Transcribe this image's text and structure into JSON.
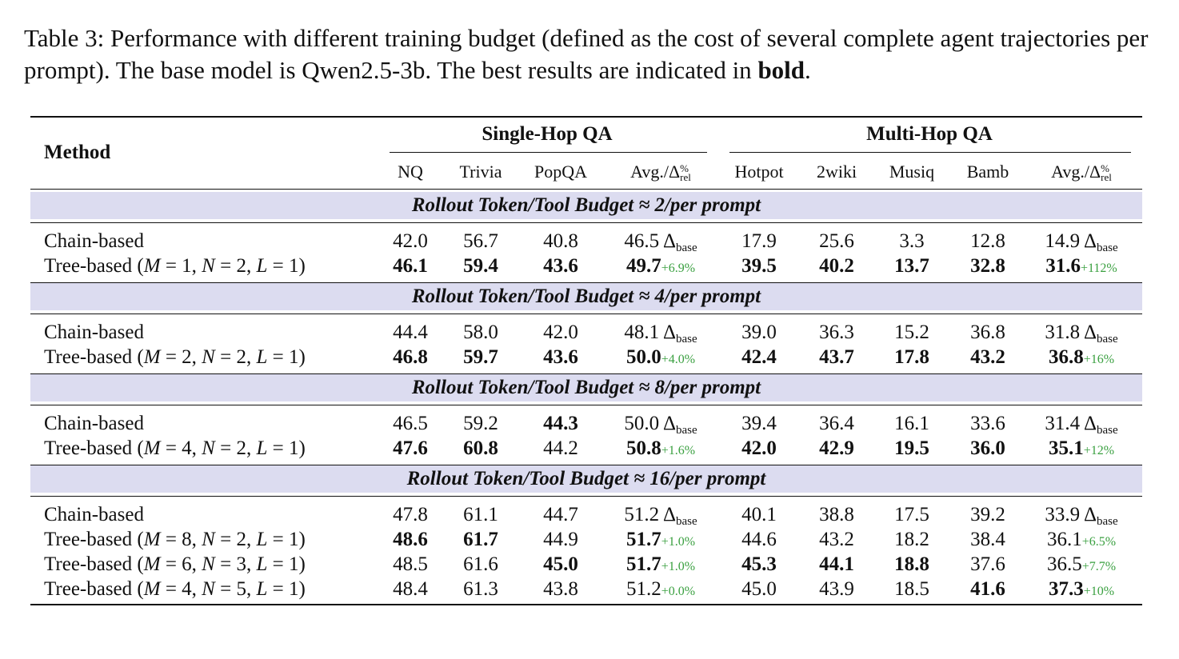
{
  "caption": {
    "prefix": "Table 3: Performance with different training budget (defined as the cost of several complete agent trajectories per prompt). The base model is Qwen2.5-3b. The best results are indicated in",
    "bold_word": "bold",
    "suffix": "."
  },
  "header": {
    "method": "Method",
    "group_single": "Single-Hop QA",
    "group_multi": "Multi-Hop QA",
    "columns": [
      "NQ",
      "Trivia",
      "PopQA",
      "Avg./Δ",
      "Hotpot",
      "2wiki",
      "Musiq",
      "Bamb",
      "Avg./Δ"
    ],
    "delta_sup": "%",
    "delta_sub": "rel"
  },
  "delta_base_label": "Δ",
  "delta_base_sub": "base",
  "sections": [
    {
      "title": "Rollout Token/Tool Budget ≈ 2/per prompt",
      "rows": [
        {
          "method": "Chain-based",
          "cells": [
            {
              "v": "42.0"
            },
            {
              "v": "56.7"
            },
            {
              "v": "40.8"
            },
            {
              "v": "46.5",
              "base": true
            },
            {
              "v": "17.9"
            },
            {
              "v": "25.6"
            },
            {
              "v": "3.3"
            },
            {
              "v": "12.8"
            },
            {
              "v": "14.9",
              "base": true
            }
          ]
        },
        {
          "method": "Tree-based",
          "params": {
            "M": "1",
            "N": "2",
            "L": "1"
          },
          "cells": [
            {
              "v": "46.1",
              "b": true
            },
            {
              "v": "59.4",
              "b": true
            },
            {
              "v": "43.6",
              "b": true
            },
            {
              "v": "49.7",
              "b": true,
              "d": "+6.9%"
            },
            {
              "v": "39.5",
              "b": true
            },
            {
              "v": "40.2",
              "b": true
            },
            {
              "v": "13.7",
              "b": true
            },
            {
              "v": "32.8",
              "b": true
            },
            {
              "v": "31.6",
              "b": true,
              "d": "+112%"
            }
          ]
        }
      ]
    },
    {
      "title": "Rollout Token/Tool Budget ≈ 4/per prompt",
      "rows": [
        {
          "method": "Chain-based",
          "cells": [
            {
              "v": "44.4"
            },
            {
              "v": "58.0"
            },
            {
              "v": "42.0"
            },
            {
              "v": "48.1",
              "base": true
            },
            {
              "v": "39.0"
            },
            {
              "v": "36.3"
            },
            {
              "v": "15.2"
            },
            {
              "v": "36.8"
            },
            {
              "v": "31.8",
              "base": true
            }
          ]
        },
        {
          "method": "Tree-based",
          "params": {
            "M": "2",
            "N": "2",
            "L": "1"
          },
          "cells": [
            {
              "v": "46.8",
              "b": true
            },
            {
              "v": "59.7",
              "b": true
            },
            {
              "v": "43.6",
              "b": true
            },
            {
              "v": "50.0",
              "b": true,
              "d": "+4.0%"
            },
            {
              "v": "42.4",
              "b": true
            },
            {
              "v": "43.7",
              "b": true
            },
            {
              "v": "17.8",
              "b": true
            },
            {
              "v": "43.2",
              "b": true
            },
            {
              "v": "36.8",
              "b": true,
              "d": "+16%"
            }
          ]
        }
      ]
    },
    {
      "title": "Rollout Token/Tool Budget ≈ 8/per prompt",
      "rows": [
        {
          "method": "Chain-based",
          "cells": [
            {
              "v": "46.5"
            },
            {
              "v": "59.2"
            },
            {
              "v": "44.3",
              "b": true
            },
            {
              "v": "50.0",
              "base": true
            },
            {
              "v": "39.4"
            },
            {
              "v": "36.4"
            },
            {
              "v": "16.1"
            },
            {
              "v": "33.6"
            },
            {
              "v": "31.4",
              "base": true
            }
          ]
        },
        {
          "method": "Tree-based",
          "params": {
            "M": "4",
            "N": "2",
            "L": "1"
          },
          "cells": [
            {
              "v": "47.6",
              "b": true
            },
            {
              "v": "60.8",
              "b": true
            },
            {
              "v": "44.2"
            },
            {
              "v": "50.8",
              "b": true,
              "d": "+1.6%"
            },
            {
              "v": "42.0",
              "b": true
            },
            {
              "v": "42.9",
              "b": true
            },
            {
              "v": "19.5",
              "b": true
            },
            {
              "v": "36.0",
              "b": true
            },
            {
              "v": "35.1",
              "b": true,
              "d": "+12%"
            }
          ]
        }
      ]
    },
    {
      "title": "Rollout Token/Tool Budget ≈ 16/per prompt",
      "rows": [
        {
          "method": "Chain-based",
          "cells": [
            {
              "v": "47.8"
            },
            {
              "v": "61.1"
            },
            {
              "v": "44.7"
            },
            {
              "v": "51.2",
              "base": true
            },
            {
              "v": "40.1"
            },
            {
              "v": "38.8"
            },
            {
              "v": "17.5"
            },
            {
              "v": "39.2"
            },
            {
              "v": "33.9",
              "base": true
            }
          ]
        },
        {
          "method": "Tree-based",
          "params": {
            "M": "8",
            "N": "2",
            "L": "1"
          },
          "cells": [
            {
              "v": "48.6",
              "b": true
            },
            {
              "v": "61.7",
              "b": true
            },
            {
              "v": "44.9"
            },
            {
              "v": "51.7",
              "b": true,
              "d": "+1.0%"
            },
            {
              "v": "44.6"
            },
            {
              "v": "43.2"
            },
            {
              "v": "18.2"
            },
            {
              "v": "38.4"
            },
            {
              "v": "36.1",
              "d": "+6.5%"
            }
          ]
        },
        {
          "method": "Tree-based",
          "params": {
            "M": "6",
            "N": "3",
            "L": "1"
          },
          "cells": [
            {
              "v": "48.5"
            },
            {
              "v": "61.6"
            },
            {
              "v": "45.0",
              "b": true
            },
            {
              "v": "51.7",
              "b": true,
              "d": "+1.0%"
            },
            {
              "v": "45.3",
              "b": true
            },
            {
              "v": "44.1",
              "b": true
            },
            {
              "v": "18.8",
              "b": true
            },
            {
              "v": "37.6"
            },
            {
              "v": "36.5",
              "d": "+7.7%"
            }
          ]
        },
        {
          "method": "Tree-based",
          "params": {
            "M": "4",
            "N": "5",
            "L": "1"
          },
          "cells": [
            {
              "v": "48.4"
            },
            {
              "v": "61.3"
            },
            {
              "v": "43.8"
            },
            {
              "v": "51.2",
              "d": "+0.0%"
            },
            {
              "v": "45.0"
            },
            {
              "v": "43.9"
            },
            {
              "v": "18.5"
            },
            {
              "v": "41.6",
              "b": true
            },
            {
              "v": "37.3",
              "b": true,
              "d": "+10%"
            }
          ]
        }
      ]
    }
  ]
}
